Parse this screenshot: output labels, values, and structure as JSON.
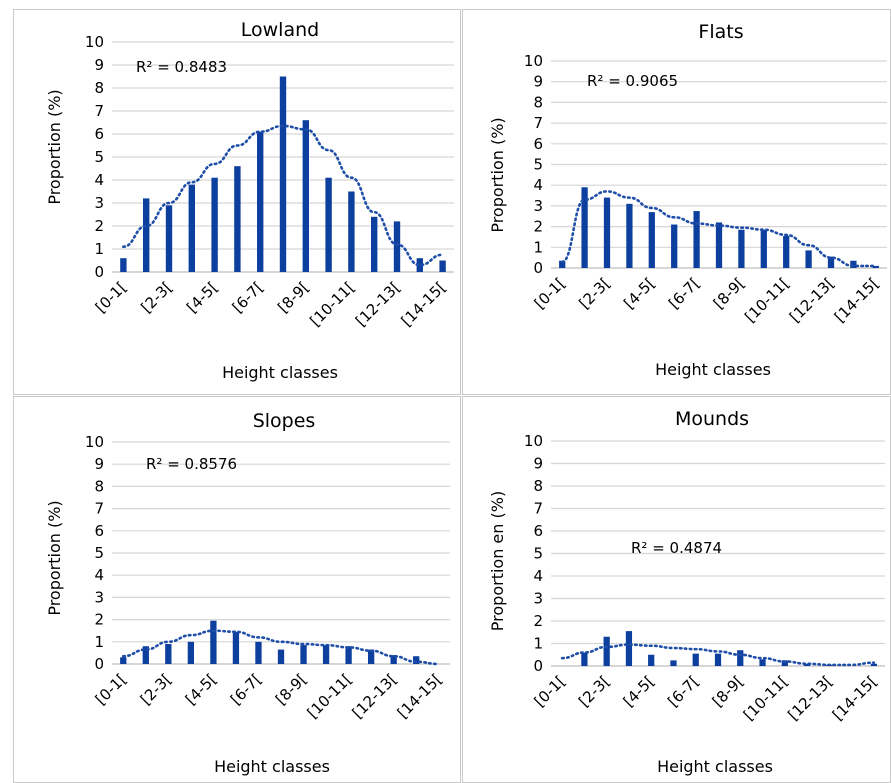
{
  "chart_data": [
    {
      "type": "bar",
      "title": "Lowland",
      "xlabel": "Height classes",
      "ylabel": "Proportion (%)",
      "ylim": [
        0,
        10
      ],
      "grid": true,
      "r2_label": "R² = 0.8483",
      "trendline": "polynomial, dotted",
      "categories": [
        "[0-1[",
        "[1-2[",
        "[2-3[",
        "[3-4[",
        "[4-5[",
        "[5-6[",
        "[6-7[",
        "[7-8[",
        "[8-9[",
        "[9-10[",
        "[10-11[",
        "[11-12[",
        "[12-13[",
        "[13-14[",
        "[14-15["
      ],
      "tick_labels": [
        "[0-1[",
        "[2-3[",
        "[4-5[",
        "[6-7[",
        "[8-9[",
        "[10-11[",
        "[12-13[",
        "[14-15["
      ],
      "values": [
        0.6,
        3.2,
        2.9,
        3.8,
        4.1,
        4.6,
        6.1,
        8.5,
        6.6,
        4.1,
        3.5,
        2.4,
        2.2,
        0.6,
        0.5
      ],
      "trend_values": [
        1.1,
        2.0,
        3.0,
        3.9,
        4.7,
        5.5,
        6.1,
        6.35,
        6.2,
        5.3,
        4.1,
        2.6,
        1.2,
        0.3,
        0.75
      ]
    },
    {
      "type": "bar",
      "title": "Flats",
      "xlabel": "Height classes",
      "ylabel": "Proportion (%)",
      "ylim": [
        0,
        10
      ],
      "grid": true,
      "r2_label": "R² = 0.9065",
      "trendline": "polynomial, dotted",
      "categories": [
        "[0-1[",
        "[1-2[",
        "[2-3[",
        "[3-4[",
        "[4-5[",
        "[5-6[",
        "[6-7[",
        "[7-8[",
        "[8-9[",
        "[9-10[",
        "[10-11[",
        "[11-12[",
        "[12-13[",
        "[13-14[",
        "[14-15["
      ],
      "tick_labels": [
        "[0-1[",
        "[2-3[",
        "[4-5[",
        "[6-7[",
        "[8-9[",
        "[10-11[",
        "[12-13[",
        "[14-15["
      ],
      "values": [
        0.35,
        3.9,
        3.4,
        3.1,
        2.7,
        2.1,
        2.75,
        2.2,
        1.85,
        1.85,
        1.55,
        0.85,
        0.55,
        0.35,
        0.1
      ],
      "trend_values": [
        0.3,
        3.3,
        3.7,
        3.4,
        2.9,
        2.45,
        2.15,
        2.05,
        1.95,
        1.85,
        1.6,
        1.1,
        0.5,
        0.1,
        0.1
      ]
    },
    {
      "type": "bar",
      "title": "Slopes",
      "xlabel": "Height classes",
      "ylabel": "Proportion (%)",
      "ylim": [
        0,
        10
      ],
      "grid": true,
      "r2_label": "R² = 0.8576",
      "trendline": "polynomial, dotted",
      "categories": [
        "[0-1[",
        "[1-2[",
        "[2-3[",
        "[3-4[",
        "[4-5[",
        "[5-6[",
        "[6-7[",
        "[7-8[",
        "[8-9[",
        "[9-10[",
        "[10-11[",
        "[11-12[",
        "[12-13[",
        "[13-14[",
        "[14-15["
      ],
      "tick_labels": [
        "[0-1[",
        "[2-3[",
        "[4-5[",
        "[6-7[",
        "[8-9[",
        "[10-11[",
        "[12-13[",
        "[14-15["
      ],
      "values": [
        0.3,
        0.8,
        0.9,
        1.0,
        1.95,
        1.45,
        1.0,
        0.65,
        0.85,
        0.85,
        0.8,
        0.65,
        0.4,
        0.35,
        0.0
      ],
      "trend_values": [
        0.35,
        0.65,
        1.0,
        1.3,
        1.5,
        1.45,
        1.2,
        1.0,
        0.9,
        0.85,
        0.75,
        0.6,
        0.35,
        0.1,
        0.0
      ]
    },
    {
      "type": "bar",
      "title": "Mounds",
      "xlabel": "Height classes",
      "ylabel": "Proportion en (%)",
      "ylim": [
        0,
        10
      ],
      "grid": true,
      "r2_label": "R² = 0.4874",
      "trendline": "polynomial, dotted",
      "categories": [
        "[0-1[",
        "[1-2[",
        "[2-3[",
        "[3-4[",
        "[4-5[",
        "[5-6[",
        "[6-7[",
        "[7-8[",
        "[8-9[",
        "[9-10[",
        "[10-11[",
        "[11-12[",
        "[12-13[",
        "[13-14[",
        "[14-15["
      ],
      "tick_labels": [
        "[0-1[",
        "[2-3[",
        "[4-5[",
        "[6-7[",
        "[8-9[",
        "[10-11[",
        "[12-13[",
        "[14-15["
      ],
      "values": [
        0.0,
        0.6,
        1.3,
        1.55,
        0.5,
        0.25,
        0.55,
        0.55,
        0.7,
        0.3,
        0.25,
        0.1,
        0.05,
        0.0,
        0.1
      ],
      "trend_values": [
        0.35,
        0.6,
        0.85,
        0.95,
        0.9,
        0.8,
        0.75,
        0.65,
        0.5,
        0.35,
        0.2,
        0.1,
        0.05,
        0.05,
        0.15
      ]
    }
  ],
  "colors": {
    "bar": "#0d3f9f",
    "trend": "#1f4ea8",
    "grid": "#d6d6d6",
    "border": "#c9c9c9"
  }
}
